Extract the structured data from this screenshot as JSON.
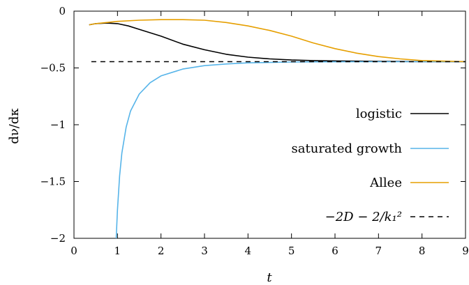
{
  "chart_data": {
    "type": "line",
    "title": "",
    "xlabel": "t",
    "ylabel": "dν/dκ",
    "xlim": [
      0,
      9
    ],
    "ylim": [
      -2,
      0
    ],
    "x_ticks": [
      0,
      1,
      2,
      3,
      4,
      5,
      6,
      7,
      8,
      9
    ],
    "x_tick_labels": [
      "0",
      "1",
      "2",
      "3",
      "4",
      "5",
      "6",
      "7",
      "8",
      "9"
    ],
    "y_ticks": [
      0,
      -0.5,
      -1,
      -1.5,
      -2
    ],
    "y_tick_labels": [
      "0",
      "−0.5",
      "−1",
      "−1.5",
      "−2"
    ],
    "grid": false,
    "legend_position": "bottom-right",
    "series": [
      {
        "name": "logistic",
        "color": "#000000",
        "dash": "solid",
        "x": [
          0.35,
          0.5,
          0.75,
          1.0,
          1.25,
          1.5,
          2.0,
          2.5,
          3.0,
          3.5,
          4.0,
          4.5,
          5.0,
          5.5,
          6.0,
          6.5,
          7.0,
          7.5,
          8.0,
          8.5,
          9.0
        ],
        "y": [
          -0.12,
          -0.11,
          -0.105,
          -0.11,
          -0.13,
          -0.16,
          -0.22,
          -0.29,
          -0.34,
          -0.38,
          -0.405,
          -0.42,
          -0.43,
          -0.435,
          -0.438,
          -0.44,
          -0.442,
          -0.443,
          -0.444,
          -0.445,
          -0.445
        ]
      },
      {
        "name": "saturated growth",
        "color": "#56b4e9",
        "dash": "solid",
        "x": [
          0.97,
          1.0,
          1.05,
          1.1,
          1.2,
          1.3,
          1.5,
          1.75,
          2.0,
          2.5,
          3.0,
          3.5,
          4.0,
          5.0,
          6.0,
          7.0,
          8.0,
          9.0
        ],
        "y": [
          -2.0,
          -1.75,
          -1.45,
          -1.25,
          -1.02,
          -0.88,
          -0.73,
          -0.63,
          -0.57,
          -0.51,
          -0.48,
          -0.465,
          -0.455,
          -0.448,
          -0.446,
          -0.445,
          -0.445,
          -0.445
        ]
      },
      {
        "name": "Allee",
        "color": "#e69f00",
        "dash": "solid",
        "x": [
          0.35,
          0.5,
          0.75,
          1.0,
          1.5,
          2.0,
          2.5,
          3.0,
          3.5,
          4.0,
          4.5,
          5.0,
          5.5,
          6.0,
          6.5,
          7.0,
          7.5,
          8.0,
          8.5,
          9.0
        ],
        "y": [
          -0.12,
          -0.11,
          -0.1,
          -0.09,
          -0.08,
          -0.075,
          -0.075,
          -0.08,
          -0.1,
          -0.13,
          -0.17,
          -0.22,
          -0.28,
          -0.33,
          -0.37,
          -0.4,
          -0.42,
          -0.435,
          -0.44,
          -0.445
        ]
      },
      {
        "name": "−2D − 2/k₁²",
        "color": "#000000",
        "dash": "dashed",
        "x": [
          0.4,
          9.0
        ],
        "y": [
          -0.445,
          -0.445
        ]
      }
    ]
  }
}
